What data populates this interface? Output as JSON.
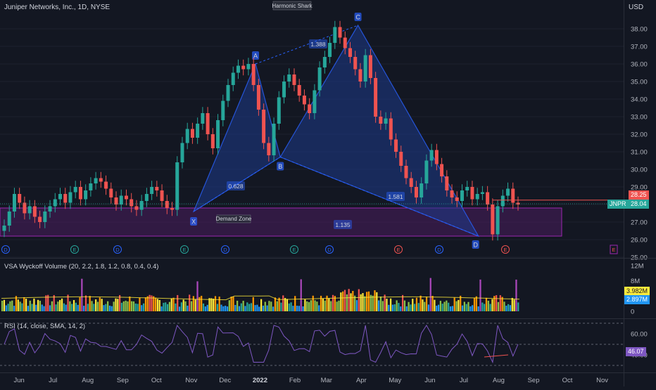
{
  "header": {
    "title": "Juniper Networks, Inc., 1D, NYSE",
    "currency": "USD"
  },
  "pattern": {
    "name": "Harmonic Shark",
    "points": {
      "X": "X",
      "A": "A",
      "B": "B",
      "C": "C",
      "D": "D"
    },
    "ratios": {
      "xa_b": "0.628",
      "ab_c": "1.388",
      "bc_d": "1.581",
      "xc_d": "1.135"
    },
    "zone_label": "Demand Zone"
  },
  "price_axis": {
    "ticks": [
      "38.00",
      "37.00",
      "36.00",
      "35.00",
      "34.00",
      "33.00",
      "32.00",
      "31.00",
      "30.00",
      "29.00",
      "27.00",
      "26.00",
      "25.00"
    ],
    "last_red": "28.25",
    "ticker": "JNPR",
    "last_green": "28.04"
  },
  "volume_pane": {
    "label": "VSA Wyckoff Volume (20, 2.2, 1.8, 1.2, 0.8, 0.4, 0.4)",
    "ticks": [
      "12M",
      "8M",
      "0"
    ],
    "value_yellow": "3.982M",
    "value_blue": "2.897M"
  },
  "rsi_pane": {
    "label": "RSI (14, close, SMA, 14, 2)",
    "ticks": [
      "60.00",
      "40.00"
    ],
    "value": "46.07"
  },
  "time_axis": {
    "labels": [
      "Jun",
      "Jul",
      "Aug",
      "Sep",
      "Oct",
      "Nov",
      "Dec",
      "2022",
      "Feb",
      "Mar",
      "Apr",
      "May",
      "Jun",
      "Jul",
      "Aug",
      "Sep",
      "Oct",
      "Nov"
    ]
  },
  "event_markers": {
    "letters": [
      "D",
      "E",
      "D",
      "E",
      "D",
      "E",
      "D",
      "E",
      "D",
      "E",
      "E"
    ]
  },
  "colors": {
    "up": "#26a69a",
    "down": "#ef5350",
    "pattern_fill": "#1e3a8a",
    "pattern_stroke": "#2962ff",
    "zone_fill": "#4a1e5e",
    "zone_stroke": "#9c27b0",
    "rsi_line": "#7e57c2"
  },
  "chart_data": {
    "type": "candlestick",
    "title": "Juniper Networks, Inc., 1D, NYSE",
    "y_range": [
      25,
      38.6
    ],
    "pattern_points": [
      {
        "label": "X",
        "date": "2021-11-03",
        "price": 27.6
      },
      {
        "label": "A",
        "date": "2021-12-28",
        "price": 36.0
      },
      {
        "label": "B",
        "date": "2022-01-19",
        "price": 30.7
      },
      {
        "label": "C",
        "date": "2022-03-29",
        "price": 38.2
      },
      {
        "label": "D",
        "date": "2022-07-14",
        "price": 26.2
      }
    ],
    "demand_zone": {
      "from": "2021-05-15",
      "to": "2022-09-10",
      "low": 26.2,
      "high": 27.8
    },
    "last_close": 28.04,
    "prev_level": 28.25,
    "closes": [
      26.8,
      27.6,
      28.6,
      28.1,
      27.5,
      27.9,
      27.3,
      27.0,
      27.6,
      27.9,
      28.3,
      28.6,
      28.1,
      28.7,
      29.0,
      28.3,
      28.8,
      29.2,
      29.5,
      29.3,
      28.9,
      28.4,
      28.0,
      28.5,
      28.3,
      27.9,
      27.7,
      28.2,
      28.6,
      29.0,
      28.8,
      28.2,
      27.8,
      27.7,
      30.4,
      31.5,
      32.3,
      31.8,
      32.6,
      33.2,
      32.0,
      31.2,
      32.8,
      33.9,
      34.8,
      35.5,
      35.9,
      35.7,
      36.0,
      34.8,
      33.4,
      31.5,
      30.8,
      32.6,
      34.1,
      35.0,
      35.4,
      34.8,
      34.2,
      33.7,
      33.2,
      34.5,
      35.8,
      36.4,
      37.2,
      38.1,
      37.5,
      36.9,
      36.4,
      35.7,
      35.0,
      36.5,
      35.2,
      33.0,
      32.6,
      32.9,
      31.7,
      31.0,
      30.2,
      29.5,
      29.0,
      28.4,
      29.2,
      30.5,
      31.1,
      30.3,
      29.6,
      28.8,
      28.4,
      28.2,
      28.8,
      29.0,
      28.3,
      28.6,
      28.7,
      28.0,
      26.3,
      27.9,
      28.5,
      28.9,
      28.1,
      28.0
    ]
  }
}
